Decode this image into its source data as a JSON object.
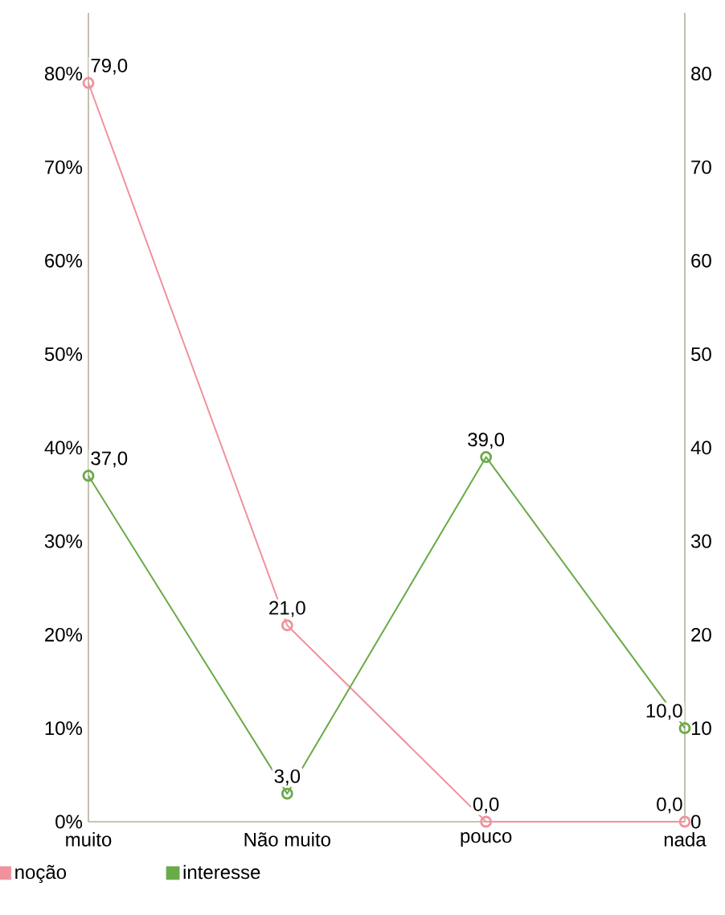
{
  "chart_data": {
    "type": "line",
    "categories": [
      "muito",
      "Não muito",
      "pouco",
      "nada"
    ],
    "series": [
      {
        "name": "noção",
        "color": "#f0929c",
        "values": [
          79,
          21,
          0,
          0
        ],
        "value_labels": [
          "79,0",
          "21,0",
          "0,0",
          "0,0"
        ]
      },
      {
        "name": "interesse",
        "color": "#6aaa48",
        "axis": "y2",
        "values": [
          37,
          3,
          39,
          10
        ],
        "value_labels": [
          "37,0",
          "3,0",
          "39,0",
          "10,0"
        ]
      }
    ],
    "ylim": [
      0,
      86.5
    ],
    "yticks": [
      {
        "value": 0,
        "label": "0%"
      },
      {
        "value": 10,
        "label": "10%"
      },
      {
        "value": 20,
        "label": "20%"
      },
      {
        "value": 30,
        "label": "30%"
      },
      {
        "value": 40,
        "label": "40%"
      },
      {
        "value": 50,
        "label": "50%"
      },
      {
        "value": 60,
        "label": "60%"
      },
      {
        "value": 70,
        "label": "70%"
      },
      {
        "value": 80,
        "label": "80%"
      }
    ],
    "y2lim": [
      0,
      86.5
    ],
    "y2ticks": [
      0,
      10,
      20,
      30,
      40,
      50,
      60,
      70,
      80
    ],
    "legend": "bottom left",
    "marker": "circle",
    "line_style": "solid"
  }
}
